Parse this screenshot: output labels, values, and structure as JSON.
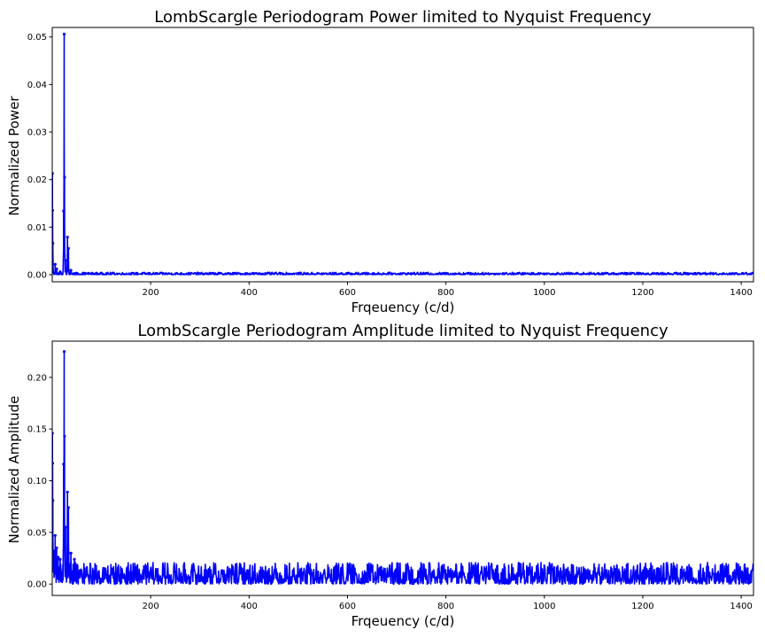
{
  "chart_data": [
    {
      "type": "line",
      "title": "LombScargle Periodogram Power limited to Nyquist Frequency",
      "xlabel": "Frqeuency (c/d)",
      "ylabel": "Normalized Power",
      "xlim": [
        0,
        1425
      ],
      "ylim": [
        -0.0015,
        0.052
      ],
      "xticks": [
        200,
        400,
        600,
        800,
        1000,
        1200,
        1400
      ],
      "yticks": [
        0.0,
        0.01,
        0.02,
        0.03,
        0.04,
        0.05
      ],
      "ytick_labels": [
        "0.00",
        "0.01",
        "0.02",
        "0.03",
        "0.04",
        "0.05"
      ],
      "grid": false,
      "color": "#0000ff",
      "marker": "dot",
      "peaks": [
        {
          "x": 0.3,
          "y": 0.0213
        },
        {
          "x": 0.8,
          "y": 0.0135
        },
        {
          "x": 1.2,
          "y": 0.0066
        },
        {
          "x": 6,
          "y": 0.0022
        },
        {
          "x": 9,
          "y": 0.0012
        },
        {
          "x": 16,
          "y": 0.0006
        },
        {
          "x": 23,
          "y": 0.0134
        },
        {
          "x": 24.3,
          "y": 0.0506
        },
        {
          "x": 25,
          "y": 0.0205
        },
        {
          "x": 27,
          "y": 0.003
        },
        {
          "x": 31,
          "y": 0.0079
        },
        {
          "x": 33,
          "y": 0.0055
        },
        {
          "x": 38,
          "y": 0.0009
        }
      ],
      "noise_floor_max": 0.0005
    },
    {
      "type": "line",
      "title": "LombScargle Periodogram Amplitude limited to Nyquist Frequency",
      "xlabel": "Frqeuency (c/d)",
      "ylabel": "Normalized Amplitude",
      "xlim": [
        0,
        1425
      ],
      "ylim": [
        -0.011,
        0.235
      ],
      "xticks": [
        200,
        400,
        600,
        800,
        1000,
        1200,
        1400
      ],
      "yticks": [
        0.0,
        0.05,
        0.1,
        0.15,
        0.2
      ],
      "ytick_labels": [
        "0.00",
        "0.05",
        "0.10",
        "0.15",
        "0.20"
      ],
      "grid": false,
      "color": "#0000ff",
      "marker": "dot",
      "peaks": [
        {
          "x": 0.3,
          "y": 0.146
        },
        {
          "x": 0.8,
          "y": 0.117
        },
        {
          "x": 1.2,
          "y": 0.081
        },
        {
          "x": 3,
          "y": 0.032
        },
        {
          "x": 6,
          "y": 0.047
        },
        {
          "x": 9,
          "y": 0.035
        },
        {
          "x": 12,
          "y": 0.026
        },
        {
          "x": 16,
          "y": 0.024
        },
        {
          "x": 23,
          "y": 0.116
        },
        {
          "x": 24.3,
          "y": 0.225
        },
        {
          "x": 25,
          "y": 0.143
        },
        {
          "x": 27,
          "y": 0.055
        },
        {
          "x": 31,
          "y": 0.089
        },
        {
          "x": 33,
          "y": 0.074
        },
        {
          "x": 38,
          "y": 0.03
        },
        {
          "x": 45,
          "y": 0.024
        }
      ],
      "noise_floor_max": 0.021
    }
  ]
}
